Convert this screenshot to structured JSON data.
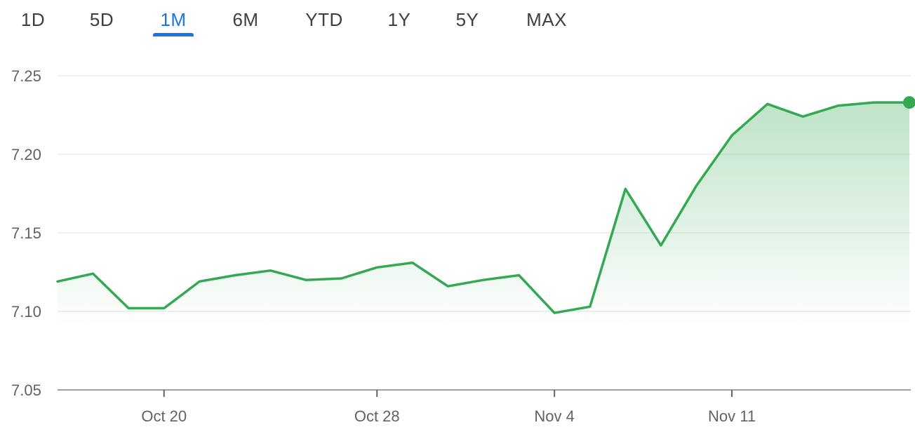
{
  "range_tabs": [
    {
      "label": "1D"
    },
    {
      "label": "5D"
    },
    {
      "label": "1M",
      "active": true
    },
    {
      "label": "6M"
    },
    {
      "label": "YTD"
    },
    {
      "label": "1Y"
    },
    {
      "label": "5Y"
    },
    {
      "label": "MAX"
    }
  ],
  "colors": {
    "line": "#34a853",
    "active_tab": "#1a73e8",
    "text": "#5f6368",
    "grid": "#ececec"
  },
  "chart_data": {
    "type": "area",
    "grid": true,
    "ylim": [
      7.05,
      7.25
    ],
    "y_ticks": [
      "7.25",
      "7.20",
      "7.15",
      "7.10",
      "7.05"
    ],
    "x_ticks": [
      {
        "label": "Oct 20",
        "index": 3
      },
      {
        "label": "Oct 28",
        "index": 9
      },
      {
        "label": "Nov 4",
        "index": 14
      },
      {
        "label": "Nov 11",
        "index": 19
      }
    ],
    "series": [
      {
        "values": [
          7.119,
          7.124,
          7.102,
          7.102,
          7.119,
          7.123,
          7.126,
          7.12,
          7.121,
          7.128,
          7.131,
          7.116,
          7.12,
          7.123,
          7.099,
          7.103,
          7.178,
          7.142,
          7.18,
          7.212,
          7.232,
          7.224,
          7.231,
          7.233,
          7.233
        ]
      }
    ]
  }
}
